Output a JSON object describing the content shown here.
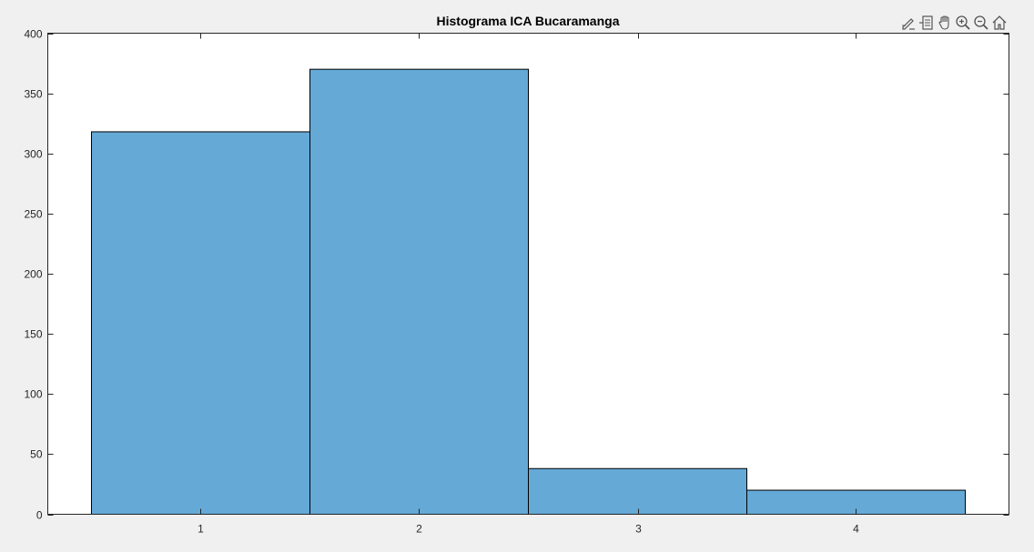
{
  "figure": {
    "background": "#f0f0f0"
  },
  "toolbar": {
    "buttons": [
      {
        "icon": "edit-pen-icon"
      },
      {
        "icon": "datatip-icon"
      },
      {
        "icon": "pan-hand-icon"
      },
      {
        "icon": "zoom-in-icon"
      },
      {
        "icon": "zoom-out-icon"
      },
      {
        "icon": "home-icon"
      }
    ]
  },
  "chart_data": {
    "type": "bar",
    "title": "Histograma ICA Bucaramanga",
    "xlabel": "",
    "ylabel": "",
    "categories": [
      "1",
      "2",
      "3",
      "4"
    ],
    "values": [
      318,
      370,
      38,
      20
    ],
    "xlim": [
      0.3,
      4.7
    ],
    "ylim": [
      0,
      400
    ],
    "yticks": [
      0,
      50,
      100,
      150,
      200,
      250,
      300,
      350,
      400
    ],
    "xticks": [
      1,
      2,
      3,
      4
    ],
    "bar_color": "#65a9d7",
    "edge_color": "#000000",
    "grid": false,
    "legend": "none"
  }
}
